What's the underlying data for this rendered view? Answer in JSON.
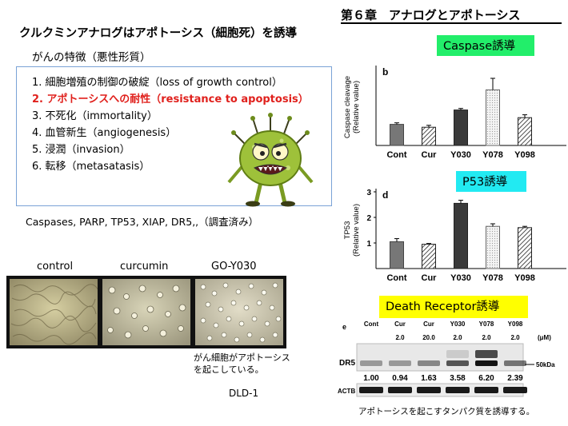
{
  "header": {
    "chapter": "第６章　アナログとアポトーシス",
    "title": "クルクミンアナログはアポトーシス（細胞死）を誘導",
    "subtitle": "がんの特徴（悪性形質）"
  },
  "hallmarks": [
    "1. 細胞増殖の制御の破綻（loss of growth control）",
    "2. アポトーシスへの耐性（resistance to apoptosis）",
    "3. 不死化（immortality）",
    "4. 血管新生（angiogenesis）",
    "5. 浸潤（invasion）",
    "6. 転移（metasatasis）"
  ],
  "examined": "Caspases, PARP, TP53, XIAP, DR5,,（調査済み）",
  "micrographs": {
    "labels": [
      "control",
      "curcumin",
      "GO-Y030"
    ],
    "note_line1": "がん細胞がアポトーシス",
    "note_line2": "を起こしている。",
    "cell_line": "DLD-1"
  },
  "labels": {
    "caspase": "Caspase誘導",
    "p53": "P53誘導",
    "death_receptor": "Death Receptor誘導"
  },
  "chart_data": [
    {
      "type": "bar",
      "panel": "b",
      "ylabel": "Caspase cleavage (Relative value)",
      "categories": [
        "Cont",
        "Cur",
        "Y030",
        "Y078",
        "Y098"
      ],
      "values": [
        1.1,
        0.95,
        1.85,
        2.9,
        1.45
      ],
      "errors": [
        0.08,
        0.1,
        0.08,
        0.6,
        0.15
      ],
      "ylim": [
        0,
        4
      ],
      "yticks": []
    },
    {
      "type": "bar",
      "panel": "d",
      "ylabel": "TP53 (Relative value)",
      "categories": [
        "Cont",
        "Cur",
        "Y030",
        "Y078",
        "Y098"
      ],
      "values": [
        1.05,
        0.95,
        2.55,
        1.65,
        1.6
      ],
      "errors": [
        0.12,
        0.03,
        0.12,
        0.1,
        0.05
      ],
      "ylim": [
        0,
        3
      ],
      "yticks": [
        "1",
        "2",
        "3"
      ]
    }
  ],
  "western_blot": {
    "panel": "e",
    "lanes": [
      "Cont",
      "Cur",
      "Cur",
      "Y030",
      "Y078",
      "Y098"
    ],
    "doses": [
      "",
      "2.0",
      "20.0",
      "2.0",
      "2.0",
      "2.0"
    ],
    "unit": "(μM)",
    "rows": [
      "DR5",
      "ACTB"
    ],
    "marker": "50kDa",
    "quant": [
      "1.00",
      "0.94",
      "1.63",
      "3.58",
      "6.20",
      "2.39"
    ]
  },
  "footnote": "アポトーシスを起こすタンパク質を誘導する。"
}
